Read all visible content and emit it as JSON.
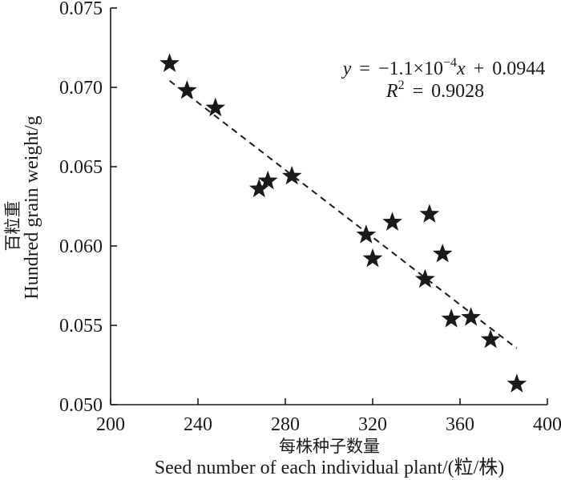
{
  "chart_data": {
    "type": "scatter",
    "xlabel": {
      "zh": "每株种子数量",
      "en": "Seed number of each individual plant/(粒/株)"
    },
    "ylabel": {
      "zh": "百粒重",
      "en": "Hundred grain weight/g"
    },
    "xlim": [
      200,
      400
    ],
    "ylim": [
      0.05,
      0.075
    ],
    "x_ticks": [
      "200",
      "240",
      "280",
      "320",
      "360",
      "400"
    ],
    "y_ticks": [
      "0.050",
      "0.055",
      "0.060",
      "0.065",
      "0.070",
      "0.075"
    ],
    "x": [
      227,
      235,
      248,
      268,
      272,
      283,
      317,
      320,
      329,
      344,
      346,
      352,
      356,
      365,
      374,
      386
    ],
    "y": [
      0.0715,
      0.0698,
      0.0687,
      0.0636,
      0.0641,
      0.0644,
      0.0607,
      0.0592,
      0.0615,
      0.0579,
      0.062,
      0.0595,
      0.0554,
      0.0555,
      0.0541,
      0.0513
    ],
    "marker": "star",
    "marker_color": "#1a1a1a",
    "trendline": {
      "type": "linear",
      "style": "dashed",
      "color": "#1a1a1a",
      "equation": {
        "lhs": "y",
        "coefficient": " = −1.1×10",
        "exponent": "−4",
        "x_var": "x",
        "intercept": " + 0.0944"
      },
      "r_squared": {
        "symbol": "R",
        "power": "2",
        "value": " = 0.9028"
      }
    },
    "grid": false,
    "legend": "none"
  }
}
